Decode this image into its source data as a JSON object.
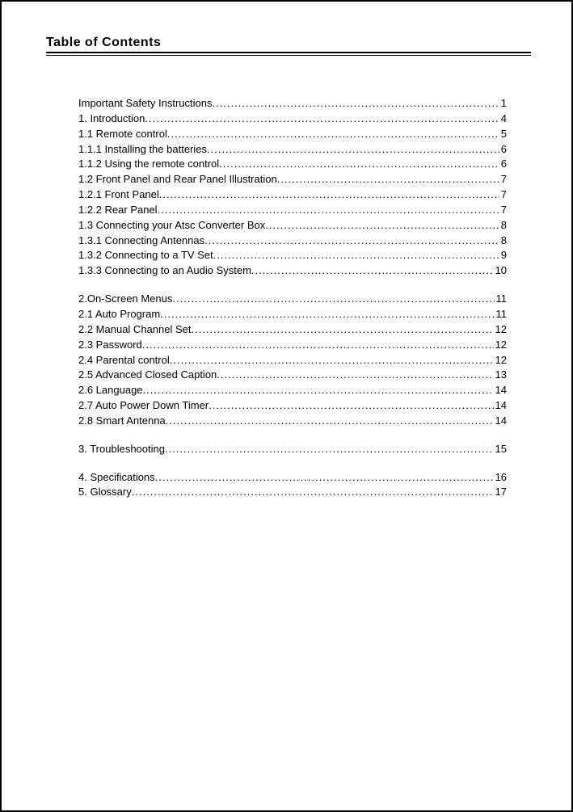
{
  "title": "Table of Contents",
  "groups": [
    [
      {
        "label": "Important Safety Instructions",
        "page": "1"
      },
      {
        "label": "1.  Introduction",
        "page": "4"
      },
      {
        "label": "1.1 Remote control",
        "page": "5"
      },
      {
        "label": "1.1.1 Installing the batteries",
        "page": "6"
      },
      {
        "label": "1.1.2 Using the remote control",
        "page": "6"
      },
      {
        "label": "1.2 Front Panel and Rear Panel Illustration",
        "page": " 7"
      },
      {
        "label": "1.2.1 Front Panel",
        "page": "7"
      },
      {
        "label": "1.2.2 Rear Panel",
        "page": "7"
      },
      {
        "label": "1.3 Connecting your Atsc Converter Box",
        "page": "  8"
      },
      {
        "label": "1.3.1 Connecting Antennas",
        "page": "8"
      },
      {
        "label": "1.3.2 Connecting to a TV Set",
        "page": "9"
      },
      {
        "label": "1.3.3 Connecting to an Audio System",
        "page": "  10"
      }
    ],
    [
      {
        "label": "2.On-Screen Menus",
        "page": "11"
      },
      {
        "label": "2.1 Auto Program",
        "page": "11"
      },
      {
        "label": "2.2  Manual Channel Set",
        "page": "12"
      },
      {
        "label": "2.3 Password",
        "page": " 12"
      },
      {
        "label": "2.4 Parental control",
        "page": " 12"
      },
      {
        "label": "2.5 Advanced Closed Caption",
        "page": " 13"
      },
      {
        "label": "2.6 Language",
        "page": " 14"
      },
      {
        "label": "2.7 Auto Power Down Timer",
        "page": " 14"
      },
      {
        "label": "2.8 Smart Antenna",
        "page": " 14"
      }
    ],
    [
      {
        "label": "3. Troubleshooting",
        "page": "   15"
      }
    ],
    [
      {
        "label": "4. Specifications",
        "page": "  16"
      },
      {
        "label": "5. Glossary",
        "page": "  17"
      }
    ]
  ]
}
